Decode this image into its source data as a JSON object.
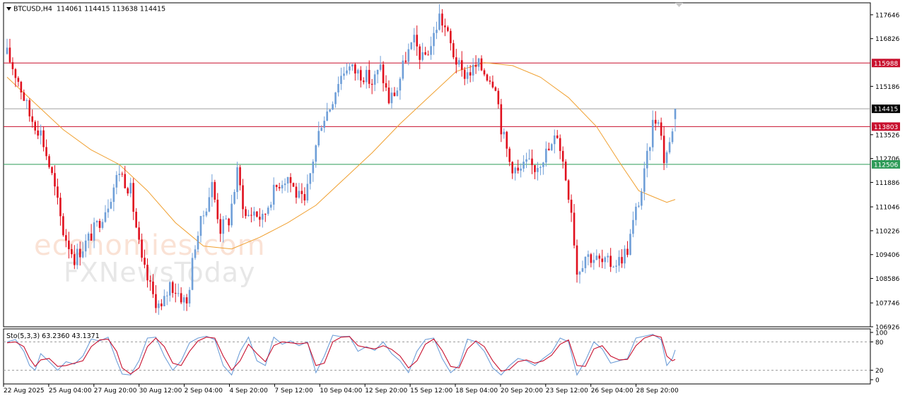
{
  "header": {
    "symbol_label": "BTCUSD,H4",
    "ohlc_text": "114061 114415 113638 114415"
  },
  "watermark": {
    "line1": "economies.com",
    "line2": "FXNewsToday"
  },
  "colors": {
    "bull": "#6f9fd8",
    "bear": "#e0101e",
    "ma": "#f0a030",
    "resistance": "#c8102e",
    "support": "#2e9b58",
    "current_price": "#a0a0a0",
    "stoch_main": "#6f9fd8",
    "stoch_signal": "#c8102e"
  },
  "chart_data": [
    {
      "type": "candlestick",
      "title": "BTCUSD,H4",
      "timeframe": "H4",
      "last_bar": {
        "open": 114061,
        "high": 114415,
        "low": 113638,
        "close": 114415
      },
      "ylim": [
        106926,
        118056
      ],
      "y_ticks": [
        117646,
        116826,
        115186,
        113526,
        112706,
        111886,
        111046,
        110226,
        109406,
        108586,
        107746,
        106926
      ],
      "x_ticks": [
        "22 Aug 2025",
        "25 Aug 04:00",
        "27 Aug 20:00",
        "30 Aug 12:00",
        "2 Sep 04:00",
        "4 Sep 20:00",
        "7 Sep 12:00",
        "10 Sep 04:00",
        "12 Sep 20:00",
        "15 Sep 12:00",
        "18 Sep 04:00",
        "20 Sep 20:00",
        "23 Sep 12:00",
        "26 Sep 04:00",
        "28 Sep 20:00"
      ],
      "horizontal_levels": [
        {
          "value": 115988,
          "label": "115988",
          "kind": "resistance"
        },
        {
          "value": 114415,
          "label": "114415",
          "kind": "current_price"
        },
        {
          "value": 113803,
          "label": "113803",
          "kind": "resistance"
        },
        {
          "value": 112506,
          "label": "112506",
          "kind": "support"
        }
      ],
      "close_path": [
        [
          0,
          116300
        ],
        [
          4,
          115400
        ],
        [
          8,
          114200
        ],
        [
          12,
          113600
        ],
        [
          16,
          112100
        ],
        [
          20,
          110200
        ],
        [
          24,
          109300
        ],
        [
          28,
          109800
        ],
        [
          32,
          110400
        ],
        [
          36,
          111200
        ],
        [
          40,
          112300
        ],
        [
          44,
          111600
        ],
        [
          48,
          109100
        ],
        [
          52,
          108000
        ],
        [
          55,
          107500
        ],
        [
          58,
          108400
        ],
        [
          61,
          108100
        ],
        [
          64,
          107700
        ],
        [
          67,
          109800
        ],
        [
          70,
          110800
        ],
        [
          73,
          111800
        ],
        [
          76,
          110300
        ],
        [
          79,
          110600
        ],
        [
          82,
          112200
        ],
        [
          85,
          110700
        ],
        [
          88,
          110900
        ],
        [
          91,
          110600
        ],
        [
          94,
          111400
        ],
        [
          97,
          111900
        ],
        [
          100,
          112100
        ],
        [
          103,
          111500
        ],
        [
          106,
          111100
        ],
        [
          109,
          112700
        ],
        [
          112,
          114000
        ],
        [
          115,
          114500
        ],
        [
          118,
          115400
        ],
        [
          121,
          115900
        ],
        [
          124,
          115700
        ],
        [
          127,
          115600
        ],
        [
          130,
          115300
        ],
        [
          133,
          115800
        ],
        [
          136,
          114700
        ],
        [
          139,
          115100
        ],
        [
          142,
          116200
        ],
        [
          145,
          116700
        ],
        [
          148,
          116100
        ],
        [
          151,
          116600
        ],
        [
          154,
          117600
        ],
        [
          156,
          117200
        ],
        [
          159,
          116300
        ],
        [
          162,
          115600
        ],
        [
          165,
          115700
        ],
        [
          168,
          115900
        ],
        [
          171,
          115600
        ],
        [
          174,
          115300
        ],
        [
          176,
          113800
        ],
        [
          179,
          112600
        ],
        [
          182,
          112200
        ],
        [
          185,
          112500
        ],
        [
          188,
          112400
        ],
        [
          191,
          112800
        ],
        [
          194,
          113100
        ],
        [
          196,
          113600
        ],
        [
          198,
          112600
        ],
        [
          201,
          111000
        ],
        [
          203,
          108800
        ],
        [
          206,
          109400
        ],
        [
          209,
          109300
        ],
        [
          212,
          109100
        ],
        [
          215,
          109100
        ],
        [
          218,
          109200
        ],
        [
          221,
          109600
        ],
        [
          224,
          110900
        ],
        [
          226,
          111600
        ],
        [
          228,
          112700
        ],
        [
          230,
          113900
        ],
        [
          232,
          114200
        ],
        [
          234,
          112700
        ],
        [
          236,
          113200
        ],
        [
          238,
          114415
        ]
      ],
      "ma_path": [
        [
          0,
          115500
        ],
        [
          10,
          114600
        ],
        [
          20,
          113700
        ],
        [
          30,
          113000
        ],
        [
          40,
          112500
        ],
        [
          50,
          111600
        ],
        [
          60,
          110500
        ],
        [
          70,
          109700
        ],
        [
          80,
          109600
        ],
        [
          90,
          110000
        ],
        [
          100,
          110500
        ],
        [
          110,
          111100
        ],
        [
          120,
          112000
        ],
        [
          130,
          112900
        ],
        [
          140,
          113900
        ],
        [
          150,
          114800
        ],
        [
          160,
          115700
        ],
        [
          170,
          116000
        ],
        [
          180,
          115900
        ],
        [
          190,
          115500
        ],
        [
          200,
          114800
        ],
        [
          210,
          113800
        ],
        [
          218,
          112600
        ],
        [
          225,
          111600
        ],
        [
          230,
          111400
        ],
        [
          235,
          111200
        ],
        [
          238,
          111300
        ]
      ]
    },
    {
      "type": "line",
      "title": "Sto(5,3,3) 63.2360 43.1371",
      "indicator": "Stochastic Oscillator",
      "parameters": [
        5,
        3,
        3
      ],
      "main_value": 63.236,
      "signal_value": 43.1371,
      "ylim": [
        0,
        100
      ],
      "y_ticks": [
        100,
        80,
        20,
        0
      ],
      "levels": [
        80,
        20
      ],
      "main_path": [
        [
          0,
          80
        ],
        [
          3,
          85
        ],
        [
          6,
          60
        ],
        [
          8,
          30
        ],
        [
          10,
          20
        ],
        [
          12,
          55
        ],
        [
          15,
          38
        ],
        [
          18,
          20
        ],
        [
          21,
          38
        ],
        [
          24,
          33
        ],
        [
          27,
          50
        ],
        [
          30,
          86
        ],
        [
          33,
          82
        ],
        [
          36,
          90
        ],
        [
          39,
          40
        ],
        [
          41,
          12
        ],
        [
          44,
          10
        ],
        [
          47,
          40
        ],
        [
          50,
          88
        ],
        [
          53,
          90
        ],
        [
          56,
          50
        ],
        [
          59,
          20
        ],
        [
          62,
          40
        ],
        [
          65,
          78
        ],
        [
          68,
          88
        ],
        [
          71,
          92
        ],
        [
          74,
          85
        ],
        [
          77,
          30
        ],
        [
          80,
          10
        ],
        [
          83,
          60
        ],
        [
          86,
          90
        ],
        [
          89,
          40
        ],
        [
          92,
          30
        ],
        [
          95,
          90
        ],
        [
          98,
          75
        ],
        [
          101,
          82
        ],
        [
          104,
          72
        ],
        [
          107,
          80
        ],
        [
          110,
          15
        ],
        [
          113,
          50
        ],
        [
          116,
          94
        ],
        [
          119,
          91
        ],
        [
          122,
          92
        ],
        [
          125,
          60
        ],
        [
          128,
          70
        ],
        [
          131,
          62
        ],
        [
          134,
          80
        ],
        [
          137,
          55
        ],
        [
          140,
          40
        ],
        [
          143,
          15
        ],
        [
          146,
          60
        ],
        [
          149,
          85
        ],
        [
          152,
          88
        ],
        [
          155,
          45
        ],
        [
          158,
          15
        ],
        [
          161,
          30
        ],
        [
          164,
          86
        ],
        [
          167,
          80
        ],
        [
          170,
          60
        ],
        [
          173,
          25
        ],
        [
          176,
          10
        ],
        [
          179,
          30
        ],
        [
          182,
          45
        ],
        [
          185,
          40
        ],
        [
          188,
          30
        ],
        [
          191,
          45
        ],
        [
          194,
          58
        ],
        [
          197,
          88
        ],
        [
          200,
          80
        ],
        [
          203,
          10
        ],
        [
          206,
          40
        ],
        [
          209,
          80
        ],
        [
          212,
          65
        ],
        [
          215,
          35
        ],
        [
          218,
          40
        ],
        [
          221,
          45
        ],
        [
          224,
          88
        ],
        [
          227,
          92
        ],
        [
          230,
          96
        ],
        [
          233,
          85
        ],
        [
          235,
          30
        ],
        [
          237,
          45
        ],
        [
          238,
          63
        ]
      ],
      "signal_path": [
        [
          0,
          78
        ],
        [
          3,
          80
        ],
        [
          6,
          70
        ],
        [
          8,
          45
        ],
        [
          10,
          28
        ],
        [
          12,
          42
        ],
        [
          15,
          45
        ],
        [
          18,
          28
        ],
        [
          21,
          30
        ],
        [
          24,
          35
        ],
        [
          27,
          40
        ],
        [
          30,
          70
        ],
        [
          33,
          84
        ],
        [
          36,
          86
        ],
        [
          39,
          60
        ],
        [
          41,
          25
        ],
        [
          44,
          12
        ],
        [
          47,
          25
        ],
        [
          50,
          70
        ],
        [
          53,
          88
        ],
        [
          56,
          70
        ],
        [
          59,
          35
        ],
        [
          62,
          30
        ],
        [
          65,
          60
        ],
        [
          68,
          82
        ],
        [
          71,
          90
        ],
        [
          74,
          88
        ],
        [
          77,
          50
        ],
        [
          80,
          20
        ],
        [
          83,
          40
        ],
        [
          86,
          75
        ],
        [
          89,
          55
        ],
        [
          92,
          38
        ],
        [
          95,
          72
        ],
        [
          98,
          80
        ],
        [
          101,
          78
        ],
        [
          104,
          76
        ],
        [
          107,
          78
        ],
        [
          110,
          30
        ],
        [
          113,
          35
        ],
        [
          116,
          80
        ],
        [
          119,
          90
        ],
        [
          122,
          91
        ],
        [
          125,
          72
        ],
        [
          128,
          68
        ],
        [
          131,
          65
        ],
        [
          134,
          72
        ],
        [
          137,
          64
        ],
        [
          140,
          50
        ],
        [
          143,
          25
        ],
        [
          146,
          40
        ],
        [
          149,
          75
        ],
        [
          152,
          86
        ],
        [
          155,
          62
        ],
        [
          158,
          28
        ],
        [
          161,
          25
        ],
        [
          164,
          65
        ],
        [
          167,
          82
        ],
        [
          170,
          70
        ],
        [
          173,
          40
        ],
        [
          176,
          18
        ],
        [
          179,
          22
        ],
        [
          182,
          38
        ],
        [
          185,
          42
        ],
        [
          188,
          35
        ],
        [
          191,
          40
        ],
        [
          194,
          52
        ],
        [
          197,
          75
        ],
        [
          200,
          84
        ],
        [
          203,
          30
        ],
        [
          206,
          28
        ],
        [
          209,
          65
        ],
        [
          212,
          72
        ],
        [
          215,
          50
        ],
        [
          218,
          42
        ],
        [
          221,
          43
        ],
        [
          224,
          72
        ],
        [
          227,
          88
        ],
        [
          230,
          94
        ],
        [
          233,
          90
        ],
        [
          235,
          50
        ],
        [
          237,
          40
        ],
        [
          238,
          43
        ]
      ]
    }
  ]
}
